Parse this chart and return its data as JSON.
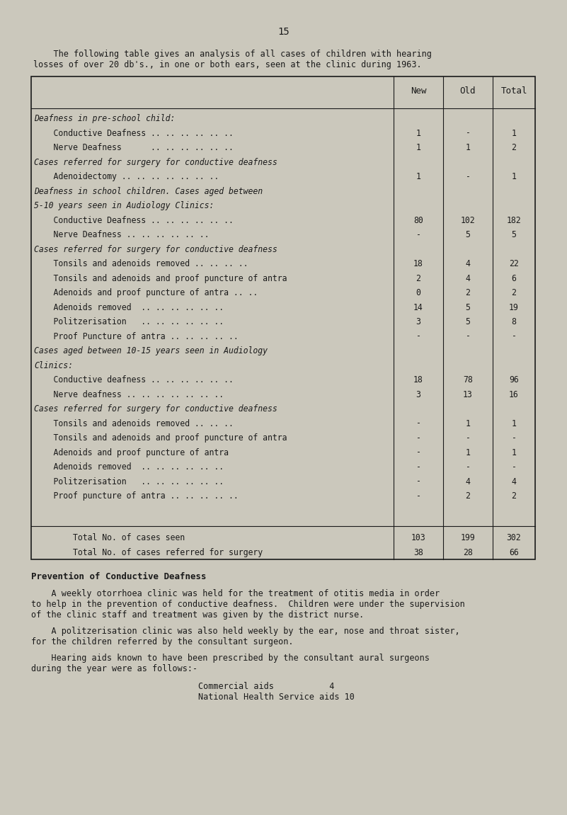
{
  "page_number": "15",
  "bg_color": "#cbc8bc",
  "text_color": "#1a1a1a",
  "intro_line1": "    The following table gives an analysis of all cases of children with hearing",
  "intro_line2": "losses of over 20 db's., in one or both ears, seen at the clinic during 1963.",
  "table": {
    "col_headers": [
      "New",
      "Old",
      "Total"
    ],
    "rows": [
      {
        "label": "Deafness in pre-school child:",
        "italic": true,
        "indent": 0,
        "new": "",
        "old": "",
        "total": ""
      },
      {
        "label": "    Conductive Deafness .. .. .. .. .. ..",
        "italic": false,
        "indent": 1,
        "new": "1",
        "old": "-",
        "total": "1"
      },
      {
        "label": "    Nerve Deafness      .. .. .. .. .. ..",
        "italic": false,
        "indent": 1,
        "new": "1",
        "old": "1",
        "total": "2"
      },
      {
        "label": "Cases referred for surgery for conductive deafness",
        "italic": true,
        "indent": 0,
        "new": "",
        "old": "",
        "total": ""
      },
      {
        "label": "    Adenoidectomy .. .. .. .. .. .. ..",
        "italic": false,
        "indent": 1,
        "new": "1",
        "old": "-",
        "total": "1"
      },
      {
        "label": "Deafness in school children. Cases aged between",
        "italic": true,
        "indent": 0,
        "new": "",
        "old": "",
        "total": ""
      },
      {
        "label": "5-10 years seen in Audiology Clinics:",
        "italic": true,
        "indent": 0,
        "new": "",
        "old": "",
        "total": ""
      },
      {
        "label": "    Conductive Deafness .. .. .. .. .. ..",
        "italic": false,
        "indent": 1,
        "new": "80",
        "old": "102",
        "total": "182"
      },
      {
        "label": "    Nerve Deafness .. .. .. .. .. ..",
        "italic": false,
        "indent": 1,
        "new": "-",
        "old": "5",
        "total": "5"
      },
      {
        "label": "Cases referred for surgery for conductive deafness",
        "italic": true,
        "indent": 0,
        "new": "",
        "old": "",
        "total": ""
      },
      {
        "label": "    Tonsils and adenoids removed .. .. .. ..",
        "italic": false,
        "indent": 1,
        "new": "18",
        "old": "4",
        "total": "22"
      },
      {
        "label": "    Tonsils and adenoids and proof puncture of antra",
        "italic": false,
        "indent": 1,
        "new": "2",
        "old": "4",
        "total": "6"
      },
      {
        "label": "    Adenoids and proof puncture of antra .. ..",
        "italic": false,
        "indent": 1,
        "new": "0",
        "old": "2",
        "total": "2"
      },
      {
        "label": "    Adenoids removed  .. .. .. .. .. ..",
        "italic": false,
        "indent": 1,
        "new": "14",
        "old": "5",
        "total": "19"
      },
      {
        "label": "    Politzerisation   .. .. .. .. .. ..",
        "italic": false,
        "indent": 1,
        "new": "3",
        "old": "5",
        "total": "8"
      },
      {
        "label": "    Proof Puncture of antra .. .. .. .. ..",
        "italic": false,
        "indent": 1,
        "new": "-",
        "old": "-",
        "total": "-"
      },
      {
        "label": "Cases aged between 10-15 years seen in Audiology",
        "italic": true,
        "indent": 0,
        "new": "",
        "old": "",
        "total": ""
      },
      {
        "label": "Clinics:",
        "italic": true,
        "indent": 0,
        "new": "",
        "old": "",
        "total": ""
      },
      {
        "label": "    Conductive deafness .. .. .. .. .. ..",
        "italic": false,
        "indent": 1,
        "new": "18",
        "old": "78",
        "total": "96"
      },
      {
        "label": "    Nerve deafness .. .. .. .. .. .. ..",
        "italic": false,
        "indent": 1,
        "new": "3",
        "old": "13",
        "total": "16"
      },
      {
        "label": "Cases referred for surgery for conductive deafness",
        "italic": true,
        "indent": 0,
        "new": "",
        "old": "",
        "total": ""
      },
      {
        "label": "    Tonsils and adenoids removed .. .. ..",
        "italic": false,
        "indent": 1,
        "new": "-",
        "old": "1",
        "total": "1"
      },
      {
        "label": "    Tonsils and adenoids and proof puncture of antra",
        "italic": false,
        "indent": 1,
        "new": "-",
        "old": "-",
        "total": "-"
      },
      {
        "label": "    Adenoids and proof puncture of antra",
        "italic": false,
        "indent": 1,
        "new": "-",
        "old": "1",
        "total": "1"
      },
      {
        "label": "    Adenoids removed  .. .. .. .. .. ..",
        "italic": false,
        "indent": 1,
        "new": "-",
        "old": "-",
        "total": "-"
      },
      {
        "label": "    Politzerisation   .. .. .. .. .. ..",
        "italic": false,
        "indent": 1,
        "new": "-",
        "old": "4",
        "total": "4"
      },
      {
        "label": "    Proof puncture of antra .. .. .. .. ..",
        "italic": false,
        "indent": 1,
        "new": "-",
        "old": "2",
        "total": "2"
      }
    ],
    "totals": [
      {
        "label": "        Total No. of cases seen",
        "new": "103",
        "old": "199",
        "total": "302"
      },
      {
        "label": "        Total No. of cases referred for surgery",
        "new": "38",
        "old": "28",
        "total": "66"
      }
    ]
  },
  "section_heading": "Prevention of Conductive Deafness",
  "para1": "    A weekly otorrhoea clinic was held for the treatment of otitis media in order\nto help in the prevention of conductive deafness.  Children were under the supervision\nof the clinic staff and treatment was given by the district nurse.",
  "para2": "    A politzerisation clinic was also held weekly by the ear, nose and throat sister,\nfor the children referred by the consultant surgeon.",
  "para3": "    Hearing aids known to have been prescribed by the consultant aural surgeons\nduring the year were as follows:-",
  "aids_line1": "Commercial aids           4",
  "aids_line2": "National Health Service aids 10"
}
